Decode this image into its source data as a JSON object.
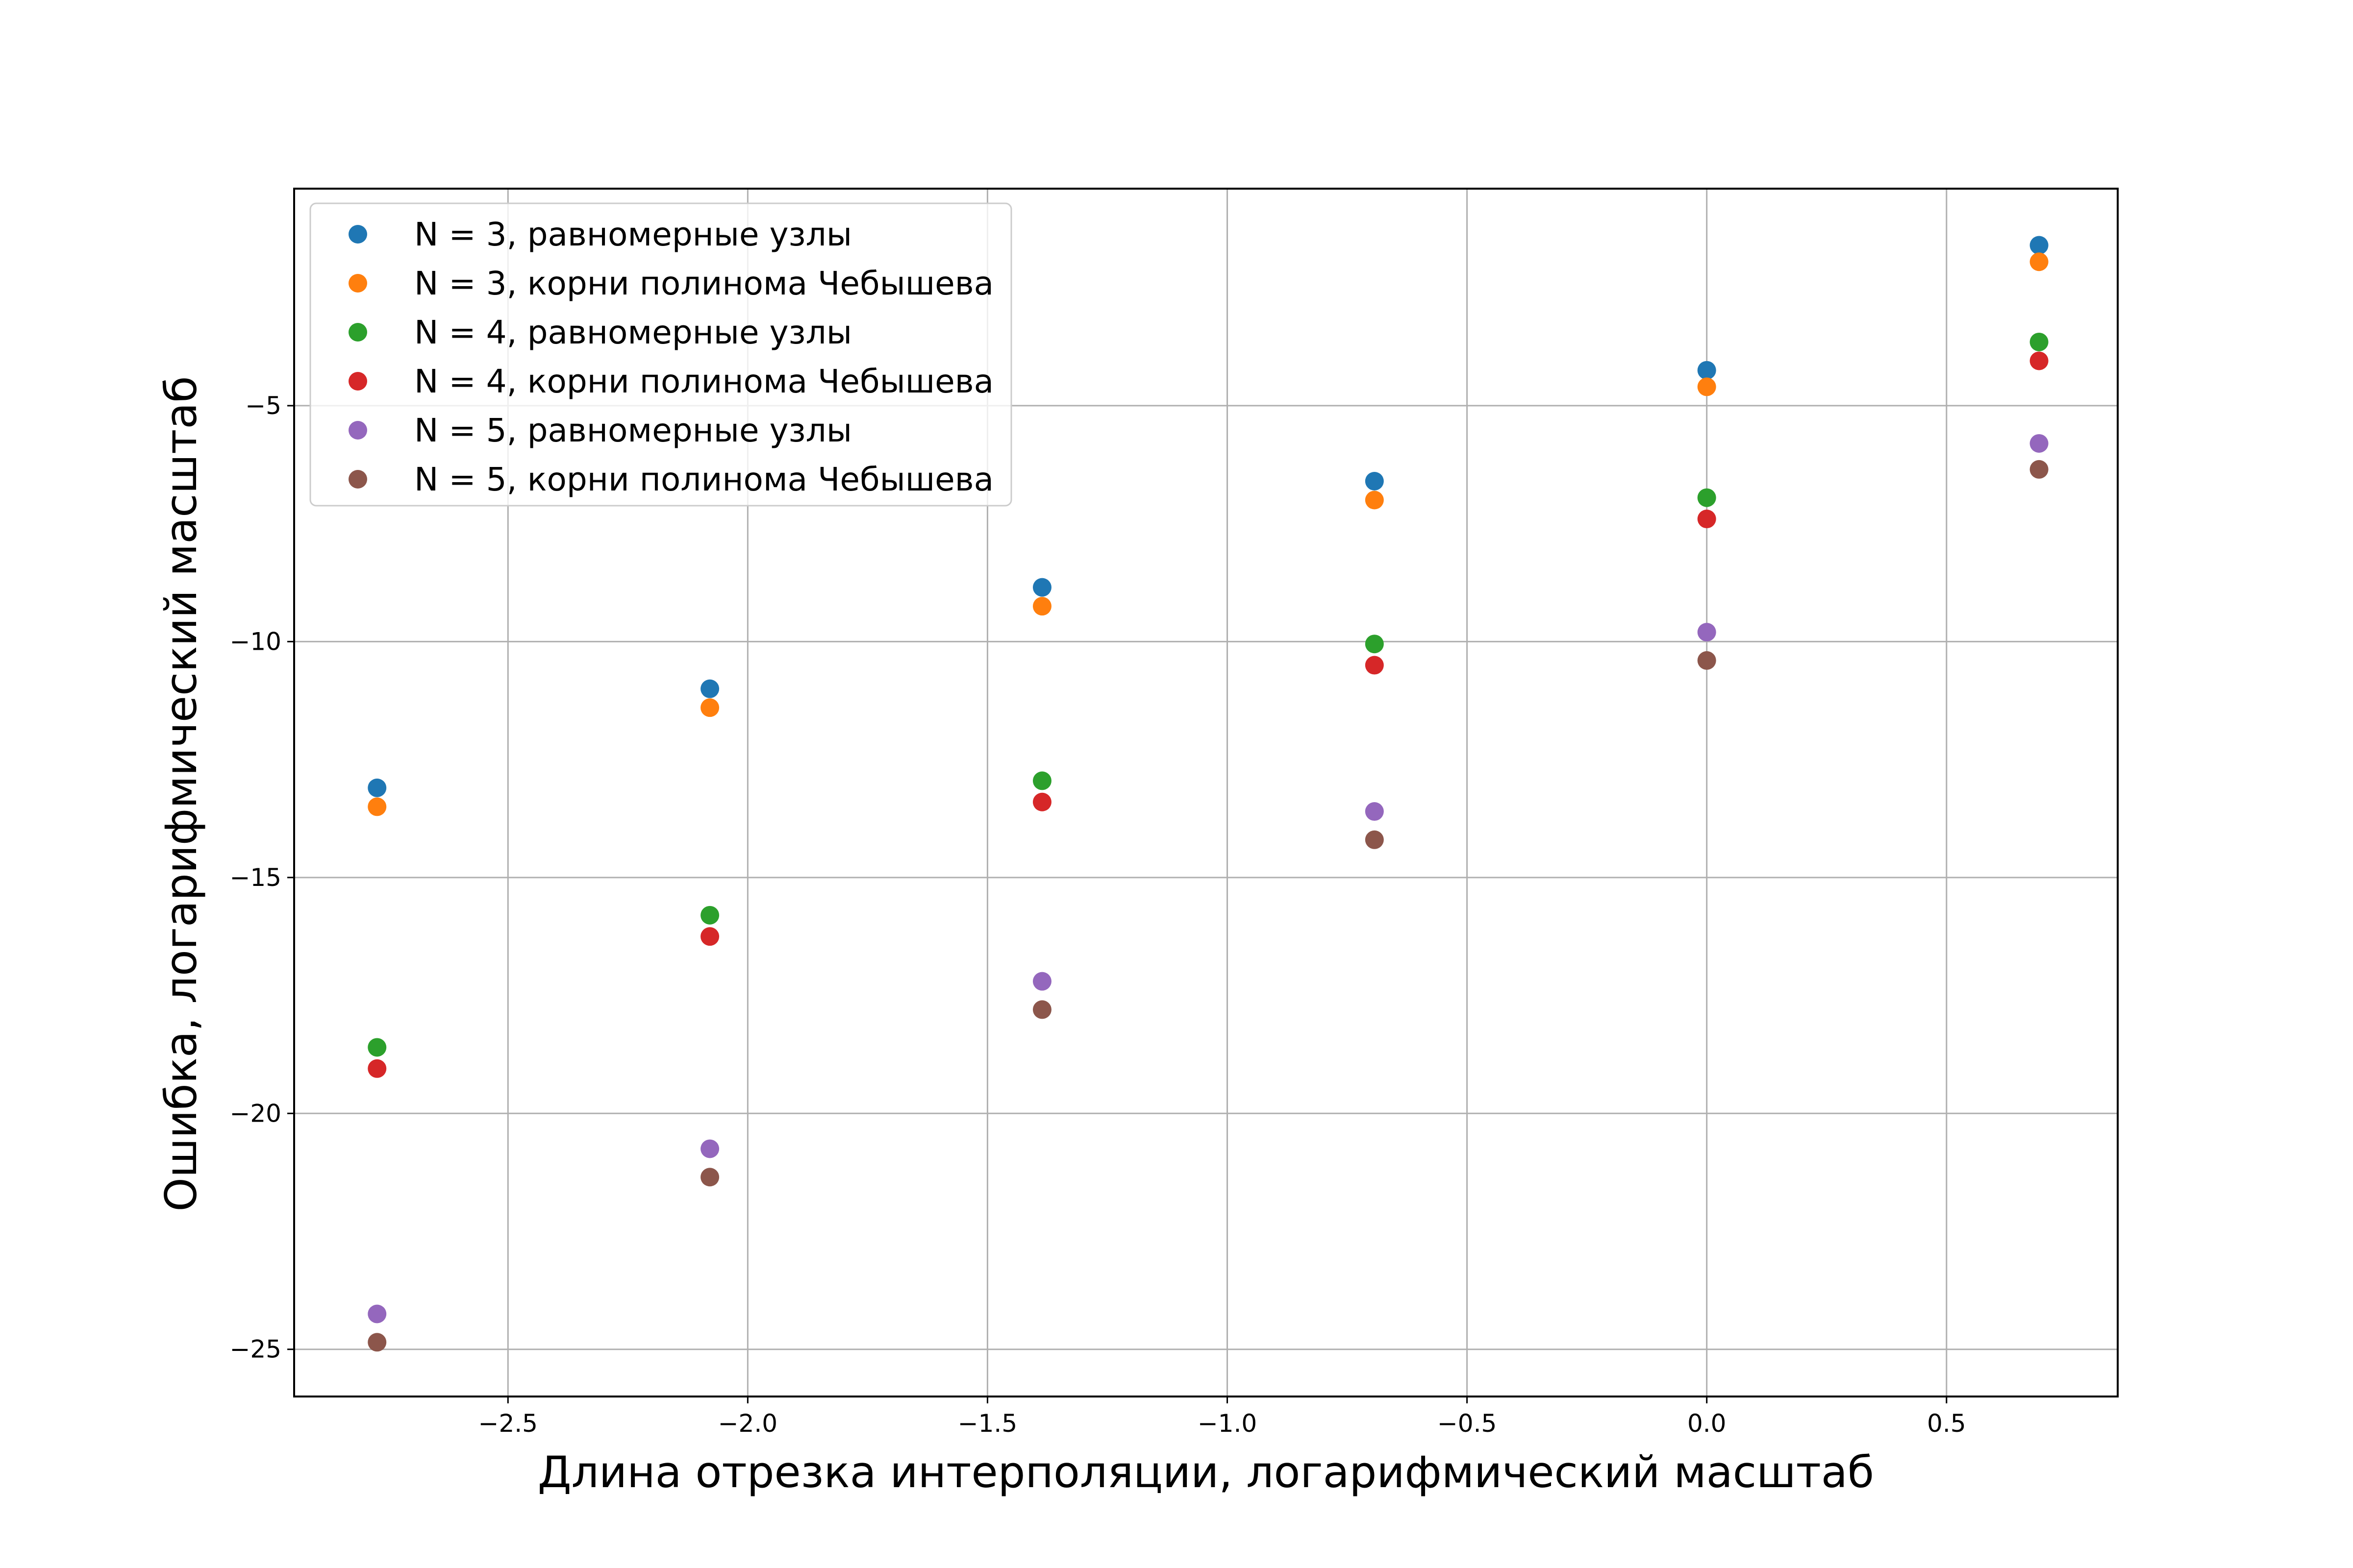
{
  "chart_data": {
    "type": "scatter",
    "title": "",
    "xlabel": "Длина отрезка интерполяции, логарифмический масштаб",
    "ylabel": "Ошибка, логарифмический масштаб",
    "xlim": [
      -2.946,
      0.857
    ],
    "ylim": [
      -26.0,
      -0.4
    ],
    "xticks": [
      -2.5,
      -2.0,
      -1.5,
      -1.0,
      -0.5,
      0.0,
      0.5
    ],
    "xtick_labels": [
      "−2.5",
      "−2.0",
      "−1.5",
      "−1.0",
      "−0.5",
      "0.0",
      "0.5"
    ],
    "yticks": [
      -5,
      -10,
      -15,
      -20,
      -25
    ],
    "ytick_labels": [
      "−5",
      "−10",
      "−15",
      "−20",
      "−25"
    ],
    "grid": true,
    "legend_position": "top-left",
    "x": [
      -2.773,
      -2.079,
      -1.386,
      -0.693,
      0.0,
      0.693
    ],
    "series": [
      {
        "name": "N = 3, равномерные узлы",
        "color": "#1f77b4",
        "values": [
          -13.1,
          -11.0,
          -8.85,
          -6.6,
          -4.25,
          -1.6
        ]
      },
      {
        "name": "N = 3, корни полинома Чебышева",
        "color": "#ff7f0e",
        "values": [
          -13.5,
          -11.4,
          -9.25,
          -7.0,
          -4.6,
          -1.95
        ]
      },
      {
        "name": "N = 4, равномерные узлы",
        "color": "#2ca02c",
        "values": [
          -18.6,
          -15.8,
          -12.95,
          -10.05,
          -6.95,
          -3.65
        ]
      },
      {
        "name": "N = 4, корни полинома Чебышева",
        "color": "#d62728",
        "values": [
          -19.05,
          -16.25,
          -13.4,
          -10.5,
          -7.4,
          -4.05
        ]
      },
      {
        "name": "N = 5, равномерные узлы",
        "color": "#9467bd",
        "values": [
          -24.25,
          -20.75,
          -17.2,
          -13.6,
          -9.8,
          -5.8
        ]
      },
      {
        "name": "N = 5, корни полинома Чебышева",
        "color": "#8c564b",
        "values": [
          -24.85,
          -21.35,
          -17.8,
          -14.2,
          -10.4,
          -6.35
        ]
      }
    ]
  }
}
